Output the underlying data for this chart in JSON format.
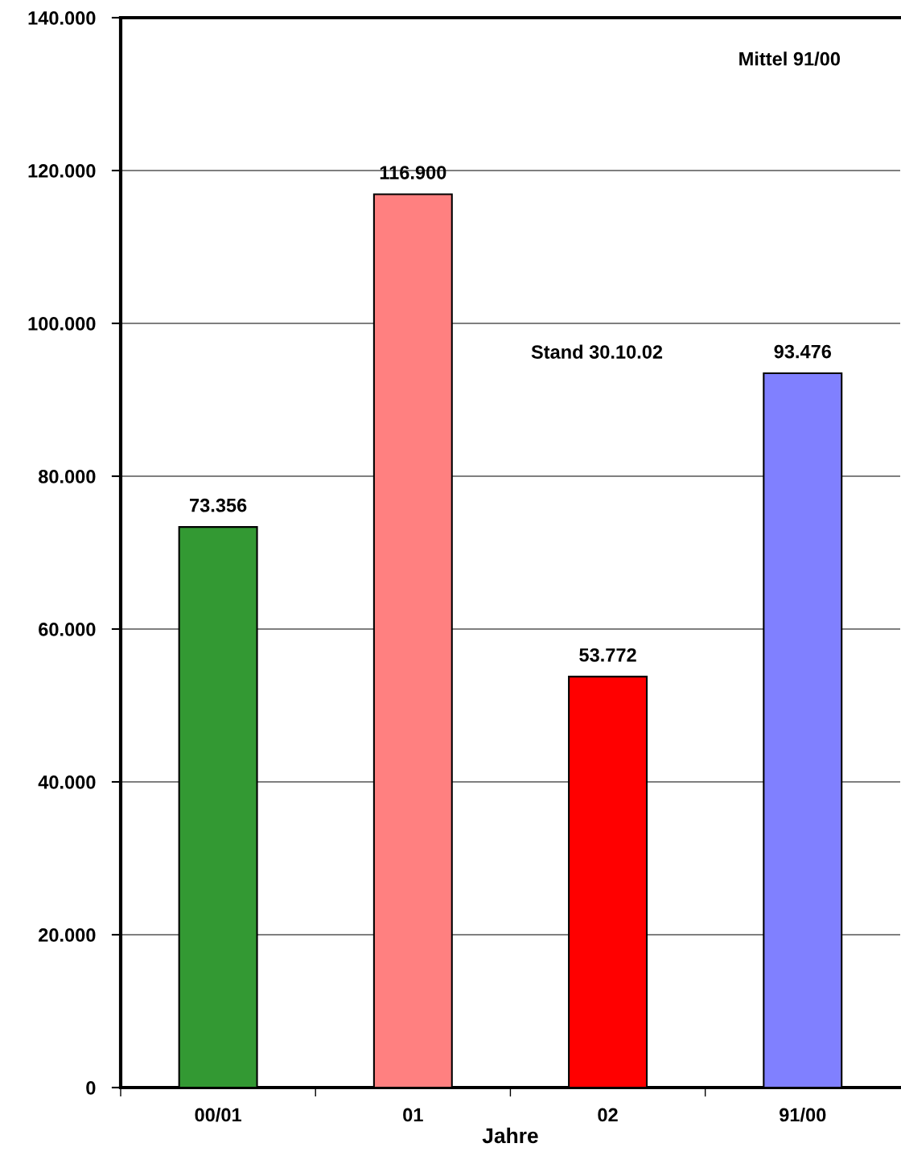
{
  "chart_data": {
    "type": "bar",
    "xlabel": "Jahre",
    "categories": [
      "00/01",
      "01",
      "02",
      "91/00"
    ],
    "values": [
      73356,
      116900,
      53772,
      93476
    ],
    "colors": [
      "#339933",
      "#ff8080",
      "#ff0000",
      "#8080ff"
    ],
    "value_labels": [
      "73.356",
      "116.900",
      "53.772",
      "93.476"
    ],
    "ylim": [
      0,
      140000
    ],
    "yticks": [
      0,
      {
        "value": 20000,
        "label": "20.000"
      },
      {
        "value": 40000,
        "label": "40.000"
      },
      {
        "value": 60000,
        "label": "60.000"
      },
      {
        "value": 80000,
        "label": "80.000"
      },
      {
        "value": 100000,
        "label": "100.000"
      },
      {
        "value": 120000,
        "label": "120.000"
      },
      {
        "value": 140000,
        "label": "140.000"
      }
    ],
    "grid": "y",
    "annotations": [
      "Mittel 91/00",
      "Stand 30.10.02"
    ]
  }
}
